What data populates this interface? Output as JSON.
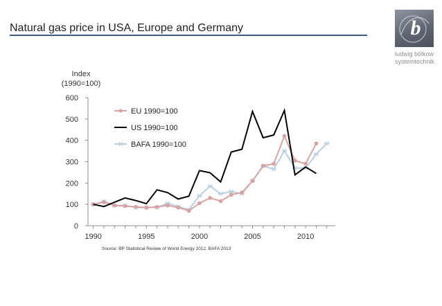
{
  "header": {
    "title": "Natural gas price in USA, Europe and Germany",
    "accent_color": "#3a5a8c"
  },
  "logo": {
    "mark": "b",
    "line1": "ludwig bölkow",
    "line2": "systemtechnik",
    "color": "#5f6672"
  },
  "source": "Source: BP Statistical Review of World Energy 2012, BAFA 2013",
  "chart_data": {
    "type": "line",
    "ylabel_line1": "Index",
    "ylabel_line2": "(1990=100)",
    "xlim": [
      1989.5,
      2012.8
    ],
    "ylim": [
      0,
      600
    ],
    "yticks": [
      0,
      100,
      200,
      300,
      400,
      500,
      600
    ],
    "xticks": [
      1990,
      1995,
      2000,
      2005,
      2010
    ],
    "grid": false,
    "legend_position": "top-left inside plot",
    "series": [
      {
        "name": "EU 1990=100",
        "color": "#d9a3a3",
        "marker": "circle",
        "x": [
          1990,
          1991,
          1992,
          1993,
          1994,
          1995,
          1996,
          1997,
          1998,
          1999,
          2000,
          2001,
          2002,
          2003,
          2004,
          2005,
          2006,
          2007,
          2008,
          2009,
          2010,
          2011
        ],
        "values": [
          100,
          110,
          95,
          92,
          88,
          85,
          88,
          95,
          85,
          70,
          105,
          130,
          115,
          145,
          155,
          210,
          280,
          290,
          420,
          305,
          290,
          385
        ]
      },
      {
        "name": "US 1990=100",
        "color": "#000000",
        "marker": "none",
        "x": [
          1990,
          1991,
          1992,
          1993,
          1994,
          1995,
          1996,
          1997,
          1998,
          1999,
          2000,
          2001,
          2002,
          2003,
          2004,
          2005,
          2006,
          2007,
          2008,
          2009,
          2010,
          2011
        ],
        "values": [
          100,
          90,
          110,
          130,
          118,
          103,
          168,
          155,
          125,
          138,
          258,
          248,
          205,
          345,
          358,
          535,
          412,
          425,
          540,
          238,
          275,
          245
        ]
      },
      {
        "name": "BAFA 1990=100",
        "color": "#b9d0e0",
        "marker": "star",
        "x": [
          1990,
          1991,
          1992,
          1993,
          1994,
          1995,
          1996,
          1997,
          1998,
          1999,
          2000,
          2001,
          2002,
          2003,
          2004,
          2005,
          2006,
          2007,
          2008,
          2009,
          2010,
          2011,
          2012
        ],
        "values": [
          100,
          115,
          95,
          95,
          85,
          85,
          85,
          105,
          90,
          75,
          140,
          185,
          150,
          160,
          150,
          210,
          280,
          265,
          350,
          270,
          270,
          335,
          385
        ]
      }
    ]
  }
}
